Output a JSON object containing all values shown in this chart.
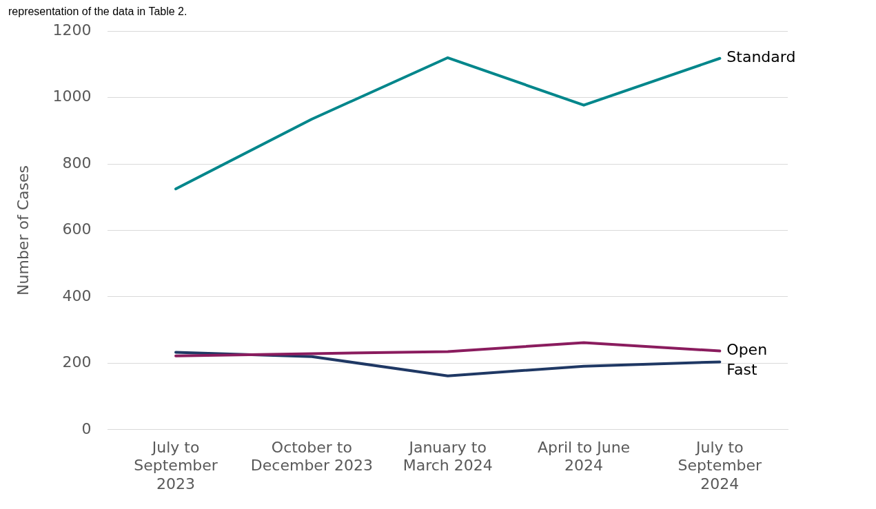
{
  "chart_data": {
    "type": "line",
    "categories": [
      "July to September 2023",
      "October to December 2023",
      "January to March 2024",
      "April to June 2024",
      "July to September 2024"
    ],
    "series": [
      {
        "name": "Standard",
        "color": "#00868b",
        "values": [
          725,
          935,
          1120,
          977,
          1118
        ]
      },
      {
        "name": "Open",
        "color": "#8a1c5e",
        "values": [
          222,
          229,
          235,
          262,
          237
        ]
      },
      {
        "name": "Fast",
        "color": "#1f3864",
        "values": [
          233,
          220,
          162,
          191,
          204
        ]
      }
    ],
    "ylabel": "Number of Cases",
    "ylim": [
      0,
      1200
    ],
    "yticks": [
      0,
      200,
      400,
      600,
      800,
      1000,
      1200
    ],
    "grid": "y",
    "legend": false,
    "marker": "none",
    "line_style": "solid",
    "annotations": [
      "representation of the data in Table 2."
    ]
  }
}
